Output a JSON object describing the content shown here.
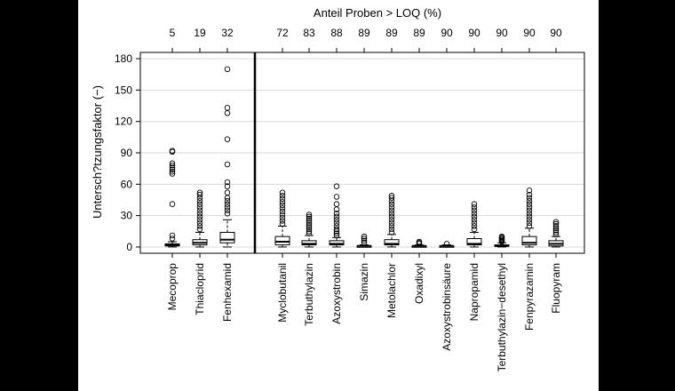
{
  "chart_data": {
    "type": "box",
    "title": "Anteil Proben > LOQ (%)",
    "xlabel": "",
    "ylabel": "Untersch?tzungsfaktor (−)",
    "ylim": [
      -6,
      186
    ],
    "yticks": [
      0,
      30,
      60,
      90,
      120,
      150,
      180
    ],
    "grid": true,
    "group_separator_after": "Fenhexamid",
    "categories": [
      "Mecoprop",
      "Thiacloprid",
      "Fenhexamid",
      "Myclobutanil",
      "Terbuthylazin",
      "Azoxystrobin",
      "Simazin",
      "Metolachlor",
      "Oxadixyl",
      "Azoxystrobinsäure",
      "Napropamid",
      "Terbuthylazin−desethyl",
      "Fenpyrazamin",
      "Fluopyram"
    ],
    "percent_above_loq": [
      "5",
      "19",
      "32",
      "72",
      "83",
      "88",
      "89",
      "89",
      "89",
      "90",
      "90",
      "90",
      "90",
      "90"
    ],
    "boxes": [
      {
        "min": 0,
        "q1": 1,
        "median": 2,
        "q3": 3,
        "max": 5,
        "outliers": [
          8,
          11,
          41,
          70,
          72,
          74,
          76,
          78,
          80,
          91,
          92
        ]
      },
      {
        "min": 0,
        "q1": 2,
        "median": 4,
        "q3": 7,
        "max": 14,
        "outliers": [
          17,
          20,
          23,
          26,
          29,
          32,
          35,
          38,
          41,
          44,
          47,
          50,
          52
        ]
      },
      {
        "min": 0,
        "q1": 4,
        "median": 7,
        "q3": 14,
        "max": 26,
        "outliers": [
          32,
          35,
          38,
          41,
          44,
          47,
          52,
          58,
          62,
          79,
          103,
          128,
          133,
          170
        ]
      },
      {
        "min": 0,
        "q1": 2,
        "median": 5,
        "q3": 10,
        "max": 20,
        "outliers": [
          22,
          25,
          28,
          31,
          34,
          37,
          40,
          43,
          46,
          49,
          52
        ]
      },
      {
        "min": 0,
        "q1": 2,
        "median": 3,
        "q3": 6,
        "max": 11,
        "outliers": [
          13,
          15,
          17,
          19,
          21,
          23,
          25,
          27,
          29,
          31
        ]
      },
      {
        "min": 0,
        "q1": 2,
        "median": 3,
        "q3": 6,
        "max": 9,
        "outliers": [
          11,
          13,
          15,
          17,
          20,
          23,
          26,
          29,
          32,
          36,
          41,
          48,
          58
        ]
      },
      {
        "min": 0,
        "q1": 0,
        "median": 1,
        "q3": 1,
        "max": 2,
        "outliers": [
          4,
          6,
          8,
          10
        ]
      },
      {
        "min": 0,
        "q1": 2,
        "median": 3,
        "q3": 7,
        "max": 12,
        "outliers": [
          14,
          17,
          20,
          23,
          26,
          29,
          32,
          35,
          38,
          41,
          44,
          47,
          49
        ]
      },
      {
        "min": 0,
        "q1": 0,
        "median": 1,
        "q3": 1,
        "max": 2,
        "outliers": [
          3,
          4,
          5
        ]
      },
      {
        "min": 0,
        "q1": 0,
        "median": 1,
        "q3": 1,
        "max": 2,
        "outliers": [
          3
        ]
      },
      {
        "min": 0,
        "q1": 2,
        "median": 3,
        "q3": 8,
        "max": 14,
        "outliers": [
          17,
          20,
          23,
          26,
          29,
          32,
          35,
          38,
          41
        ]
      },
      {
        "min": 0,
        "q1": 1,
        "median": 1,
        "q3": 2,
        "max": 4,
        "outliers": [
          5,
          6,
          7,
          8,
          9,
          10
        ]
      },
      {
        "min": 0,
        "q1": 2,
        "median": 4,
        "q3": 10,
        "max": 18,
        "outliers": [
          20,
          23,
          26,
          29,
          32,
          35,
          38,
          41,
          44,
          47,
          50,
          54
        ]
      },
      {
        "min": 0,
        "q1": 1,
        "median": 3,
        "q3": 6,
        "max": 10,
        "outliers": [
          12,
          14,
          16,
          18,
          20,
          22,
          24
        ]
      }
    ]
  }
}
